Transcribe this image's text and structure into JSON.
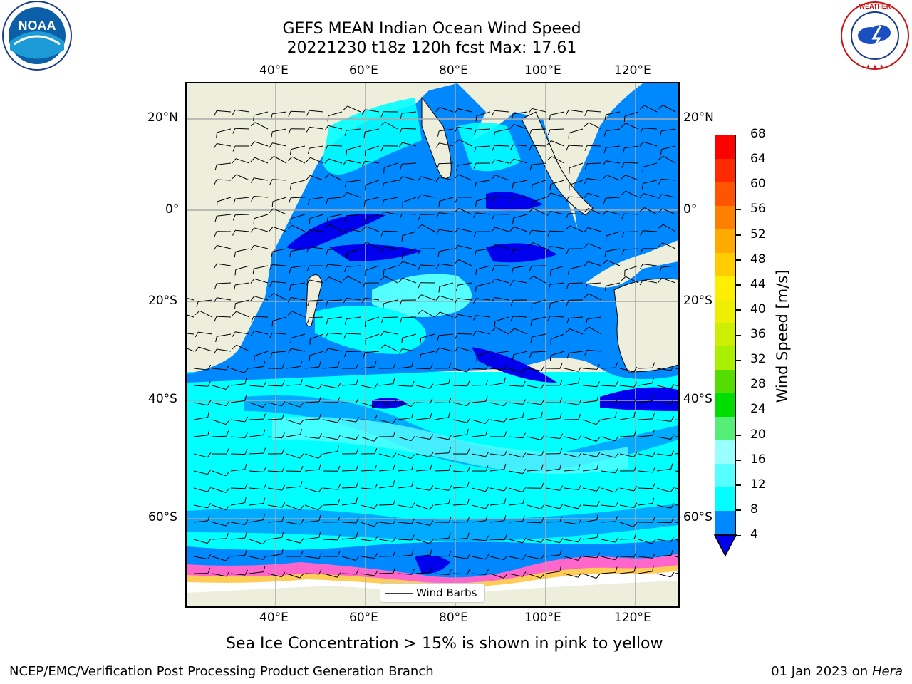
{
  "header": {
    "title_line1": "GEFS MEAN Indian Ocean Wind Speed",
    "title_line2": "20221230 t18z 120h fcst   Max: 17.61"
  },
  "axes": {
    "lon_labels": [
      "40°E",
      "60°E",
      "80°E",
      "100°E",
      "120°E"
    ],
    "lat_labels_left": [
      "20°N",
      "0°",
      "20°S",
      "40°S",
      "60°S"
    ],
    "lat_labels_right": [
      "20°N",
      "0°",
      "20°S",
      "40°S",
      "60°S"
    ]
  },
  "legend": {
    "label": "Wind Barbs"
  },
  "colorbar": {
    "label": "Wind Speed [m/s]",
    "ticks": [
      "68",
      "64",
      "60",
      "56",
      "52",
      "48",
      "44",
      "40",
      "36",
      "32",
      "28",
      "24",
      "20",
      "16",
      "12",
      "8",
      "4"
    ],
    "colors": [
      "#ff0000",
      "#ff2a00",
      "#ff5500",
      "#ff7f00",
      "#ffaa00",
      "#ffcc00",
      "#ffee00",
      "#eeee00",
      "#ccee00",
      "#aaee00",
      "#55dd00",
      "#00dd00",
      "#55ee77",
      "#99ffff",
      "#55ffff",
      "#00ffff",
      "#0088ff"
    ],
    "under_color": "#0000ee"
  },
  "map": {
    "region": "Indian Ocean",
    "extent_lon": [
      20,
      130
    ],
    "extent_lat": [
      -72,
      28
    ],
    "max_wind": 17.61
  },
  "note": "Sea Ice Concentration > 15% is shown in pink to yellow",
  "footer": {
    "left": "NCEP/EMC/Verification Post Processing Product Generation Branch",
    "right_date": "01 Jan 2023 on",
    "right_host": "Hera"
  },
  "logos": {
    "left": "NOAA",
    "right": "NATIONAL WEATHER SERVICE"
  }
}
